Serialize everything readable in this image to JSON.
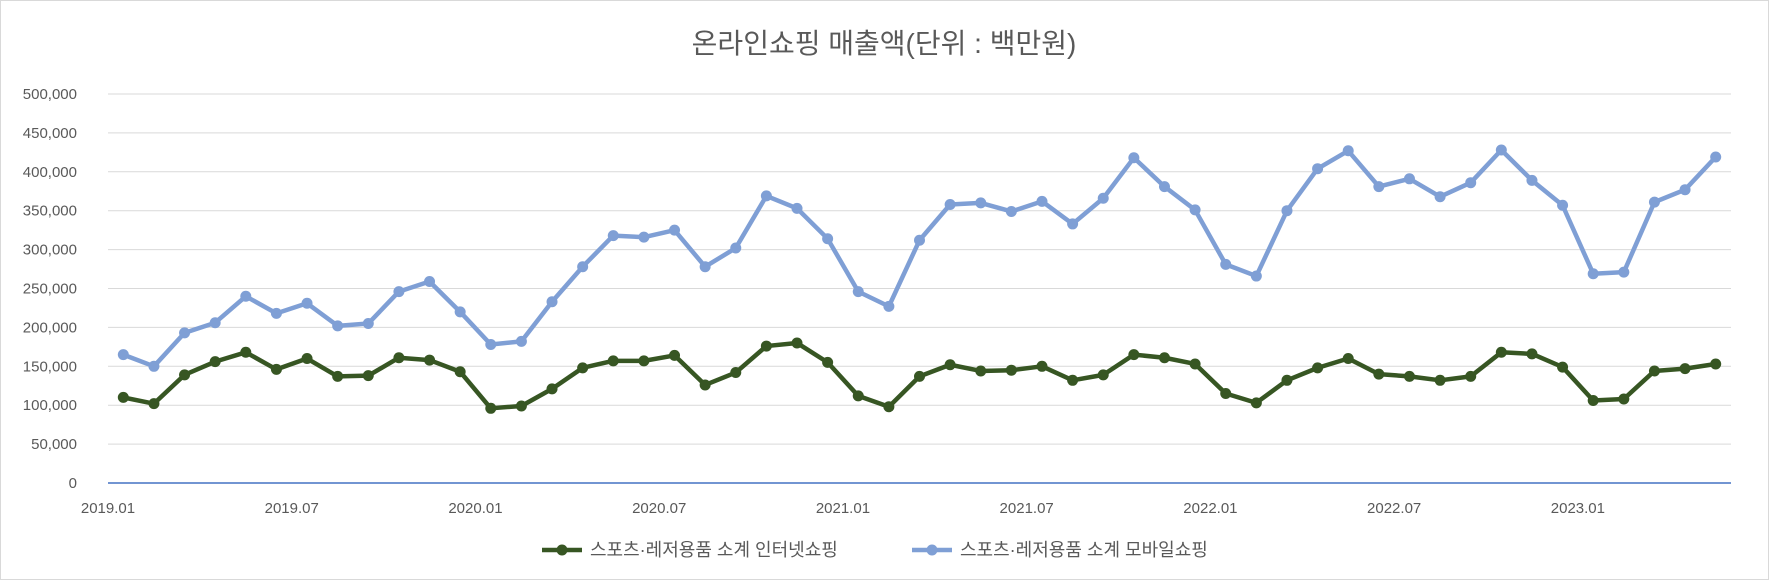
{
  "chart_data": {
    "type": "line",
    "title": "온라인쇼핑 매출액(단위 : 백만원)",
    "xlabel": "",
    "ylabel": "",
    "ylim": [
      0,
      500000
    ],
    "yticks": [
      "0",
      "50,000",
      "100,000",
      "150,000",
      "200,000",
      "250,000",
      "300,000",
      "350,000",
      "400,000",
      "450,000",
      "500,000"
    ],
    "grid": true,
    "legend_position": "bottom",
    "x": [
      "2019.01",
      "2019.02",
      "2019.03",
      "2019.04",
      "2019.05",
      "2019.06",
      "2019.07",
      "2019.08",
      "2019.09",
      "2019.10",
      "2019.11",
      "2019.12",
      "2020.01",
      "2020.02",
      "2020.03",
      "2020.04",
      "2020.05",
      "2020.06",
      "2020.07",
      "2020.08",
      "2020.09",
      "2020.10",
      "2020.11",
      "2020.12",
      "2021.01",
      "2021.02",
      "2021.03",
      "2021.04",
      "2021.05",
      "2021.06",
      "2021.07",
      "2021.08",
      "2021.09",
      "2021.10",
      "2021.11",
      "2021.12",
      "2022.01",
      "2022.02",
      "2022.03",
      "2022.04",
      "2022.05",
      "2022.06",
      "2022.07",
      "2022.08",
      "2022.09",
      "2022.10",
      "2022.11",
      "2022.12",
      "2023.01",
      "2023.02",
      "2023.03",
      "2023.04",
      "2023.05"
    ],
    "xtick_labels": [
      {
        "index": 0,
        "label": "2019.01"
      },
      {
        "index": 6,
        "label": "2019.07"
      },
      {
        "index": 12,
        "label": "2020.01"
      },
      {
        "index": 18,
        "label": "2020.07"
      },
      {
        "index": 24,
        "label": "2021.01"
      },
      {
        "index": 30,
        "label": "2021.07"
      },
      {
        "index": 36,
        "label": "2022.01"
      },
      {
        "index": 42,
        "label": "2022.07"
      },
      {
        "index": 48,
        "label": "2023.01"
      }
    ],
    "series": [
      {
        "name": "스포츠·레저용품 소계 인터넷쇼핑",
        "color": "#375623",
        "values": [
          110000,
          102000,
          139000,
          156000,
          168000,
          146000,
          160000,
          137000,
          138000,
          161000,
          158000,
          143000,
          96000,
          99000,
          121000,
          148000,
          157000,
          157000,
          164000,
          126000,
          142000,
          176000,
          180000,
          155000,
          112000,
          98000,
          137000,
          152000,
          144000,
          145000,
          150000,
          132000,
          139000,
          165000,
          161000,
          153000,
          115000,
          103000,
          132000,
          148000,
          160000,
          140000,
          137000,
          132000,
          137000,
          168000,
          166000,
          149000,
          106000,
          108000,
          144000,
          147000,
          153000
        ]
      },
      {
        "name": "스포츠·레저용품 소계 모바일쇼핑",
        "color": "#7f9fd5",
        "values": [
          165000,
          150000,
          193000,
          206000,
          240000,
          218000,
          231000,
          202000,
          205000,
          246000,
          259000,
          220000,
          178000,
          182000,
          233000,
          278000,
          318000,
          316000,
          325000,
          278000,
          302000,
          369000,
          353000,
          314000,
          246000,
          227000,
          312000,
          358000,
          360000,
          349000,
          362000,
          333000,
          366000,
          418000,
          381000,
          351000,
          281000,
          266000,
          350000,
          404000,
          427000,
          381000,
          391000,
          368000,
          386000,
          428000,
          389000,
          357000,
          269000,
          271000,
          361000,
          377000,
          419000
        ]
      }
    ]
  }
}
